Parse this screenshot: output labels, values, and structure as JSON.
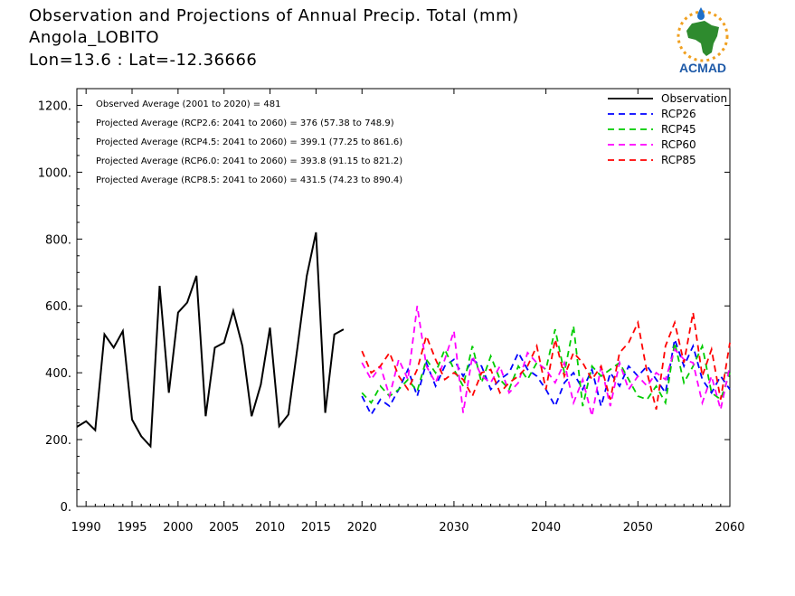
{
  "header": {
    "title_line1": "Observation and Projections of Annual Precip. Total (mm)",
    "title_line2": "Angola_LOBITO",
    "title_line3": "Lon=13.6 : Lat=-12.36666"
  },
  "logo": {
    "text": "ACMAD",
    "name": "acmad-logo"
  },
  "colors": {
    "Observation": "#000000",
    "RCP26": "#0000ff",
    "RCP45": "#00cc00",
    "RCP60": "#ff00ff",
    "RCP85": "#ff0000"
  },
  "chart_data": {
    "type": "line",
    "title": "Observation and Projections of Annual Precip. Total (mm)",
    "xlim": [
      1989,
      2060
    ],
    "ylim": [
      0,
      1250
    ],
    "x_ticks": [
      1990,
      1995,
      2000,
      2005,
      2010,
      2015,
      2020,
      2030,
      2040,
      2050,
      2060
    ],
    "y_ticks": [
      0,
      200,
      400,
      600,
      800,
      1000,
      1200
    ],
    "y_tick_labels": [
      "0.",
      "200.",
      "400.",
      "600.",
      "800.",
      "1000.",
      "1200."
    ],
    "grid": false,
    "legend_position": "top-right",
    "annotations": [
      "Observed Average (2001 to 2020) = 481",
      "Projected Average (RCP2.6: 2041 to 2060) = 376 (57.38 to 748.9)",
      "Projected Average (RCP4.5: 2041 to 2060) = 399.1 (77.25 to 861.6)",
      "Projected Average (RCP6.0: 2041 to 2060) = 393.8 (91.15 to 821.2)",
      "Projected Average (RCP8.5: 2041 to 2060) = 431.5 (74.23 to 890.4)"
    ],
    "series": [
      {
        "name": "Observation",
        "style": "solid",
        "x": [
          1989,
          1990,
          1991,
          1992,
          1993,
          1994,
          1995,
          1996,
          1997,
          1998,
          1999,
          2000,
          2001,
          2002,
          2003,
          2004,
          2005,
          2006,
          2007,
          2008,
          2009,
          2010,
          2011,
          2012,
          2013,
          2014,
          2015,
          2016,
          2017,
          2018,
          2019
        ],
        "values": [
          238,
          255,
          228,
          515,
          475,
          525,
          260,
          210,
          180,
          660,
          340,
          580,
          610,
          690,
          270,
          475,
          490,
          585,
          480,
          270,
          365,
          535,
          240,
          275,
          480,
          690,
          820,
          280,
          515,
          530,
          null
        ]
      },
      {
        "name": "RCP26",
        "style": "dashed",
        "x": [
          2020,
          2021,
          2022,
          2023,
          2024,
          2025,
          2026,
          2027,
          2028,
          2029,
          2030,
          2031,
          2032,
          2033,
          2034,
          2035,
          2036,
          2037,
          2038,
          2039,
          2040,
          2041,
          2042,
          2043,
          2044,
          2045,
          2046,
          2047,
          2048,
          2049,
          2050,
          2051,
          2052,
          2053,
          2054,
          2055,
          2056,
          2057,
          2058,
          2059,
          2060
        ],
        "values": [
          330,
          275,
          320,
          300,
          350,
          410,
          330,
          430,
          360,
          420,
          440,
          390,
          440,
          420,
          350,
          380,
          400,
          460,
          410,
          390,
          350,
          300,
          370,
          400,
          350,
          410,
          300,
          400,
          360,
          420,
          390,
          420,
          380,
          340,
          500,
          420,
          480,
          380,
          340,
          390,
          350
        ]
      },
      {
        "name": "RCP45",
        "style": "dashed",
        "x": [
          2020,
          2021,
          2022,
          2023,
          2024,
          2025,
          2026,
          2027,
          2028,
          2029,
          2030,
          2031,
          2032,
          2033,
          2034,
          2035,
          2036,
          2037,
          2038,
          2039,
          2040,
          2041,
          2042,
          2043,
          2044,
          2045,
          2046,
          2047,
          2048,
          2049,
          2050,
          2051,
          2052,
          2053,
          2054,
          2055,
          2056,
          2057,
          2058,
          2059,
          2060
        ],
        "values": [
          340,
          310,
          360,
          330,
          350,
          380,
          345,
          440,
          400,
          470,
          410,
          360,
          480,
          370,
          450,
          380,
          350,
          420,
          380,
          430,
          410,
          530,
          400,
          540,
          300,
          420,
          390,
          410,
          430,
          380,
          330,
          320,
          360,
          310,
          490,
          370,
          420,
          480,
          340,
          320,
          400
        ]
      },
      {
        "name": "RCP60",
        "style": "dashed",
        "x": [
          2020,
          2021,
          2022,
          2023,
          2024,
          2025,
          2026,
          2027,
          2028,
          2029,
          2030,
          2031,
          2032,
          2033,
          2034,
          2035,
          2036,
          2037,
          2038,
          2039,
          2040,
          2041,
          2042,
          2043,
          2044,
          2045,
          2046,
          2047,
          2048,
          2049,
          2050,
          2051,
          2052,
          2053,
          2054,
          2055,
          2056,
          2057,
          2058,
          2059,
          2060
        ],
        "values": [
          430,
          380,
          420,
          330,
          440,
          380,
          600,
          420,
          370,
          440,
          525,
          280,
          450,
          390,
          370,
          420,
          340,
          370,
          460,
          430,
          410,
          370,
          430,
          310,
          380,
          270,
          420,
          300,
          430,
          350,
          390,
          360,
          400,
          380,
          470,
          440,
          430,
          310,
          390,
          290,
          420
        ]
      },
      {
        "name": "RCP85",
        "style": "dashed",
        "x": [
          2020,
          2021,
          2022,
          2023,
          2024,
          2025,
          2026,
          2027,
          2028,
          2029,
          2030,
          2031,
          2032,
          2033,
          2034,
          2035,
          2036,
          2037,
          2038,
          2039,
          2040,
          2041,
          2042,
          2043,
          2044,
          2045,
          2046,
          2047,
          2048,
          2049,
          2050,
          2051,
          2052,
          2053,
          2054,
          2055,
          2056,
          2057,
          2058,
          2059,
          2060
        ],
        "values": [
          465,
          400,
          420,
          460,
          390,
          350,
          410,
          510,
          440,
          380,
          400,
          380,
          330,
          400,
          410,
          340,
          370,
          390,
          420,
          480,
          350,
          500,
          390,
          460,
          430,
          380,
          420,
          320,
          460,
          490,
          550,
          400,
          290,
          480,
          550,
          430,
          580,
          390,
          470,
          320,
          490
        ]
      }
    ]
  }
}
